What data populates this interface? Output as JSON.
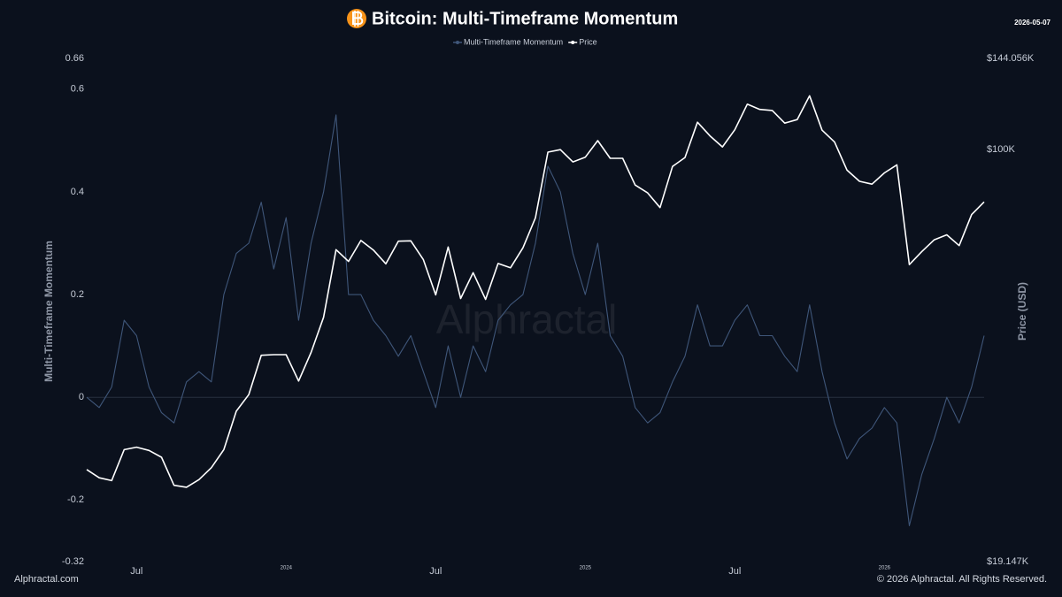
{
  "chart_data": {
    "type": "line",
    "title": "Bitcoin: Multi-Timeframe Momentum",
    "date": "2026-05-07",
    "watermark": "Alphractal",
    "source": "Alphractal.com",
    "copyright": "© 2026 Alphractal. All Rights Reserved.",
    "y_label": "Multi-Timeframe Momentum",
    "y2_label": "Price (USD)",
    "categories": [
      null,
      null,
      null,
      null,
      "Jul",
      null,
      null,
      null,
      null,
      null,
      null,
      null,
      null,
      null,
      null,
      null,
      "2024",
      null,
      null,
      null,
      null,
      null,
      null,
      null,
      null,
      null,
      null,
      null,
      "Jul",
      null,
      null,
      null,
      null,
      null,
      null,
      null,
      null,
      null,
      null,
      null,
      "2025",
      null,
      null,
      null,
      null,
      null,
      null,
      null,
      null,
      null,
      null,
      null,
      "Jul",
      null,
      null,
      null,
      null,
      null,
      null,
      null,
      null,
      null,
      null,
      null,
      "2026",
      null,
      null,
      null,
      null,
      null,
      null,
      null,
      null
    ],
    "series": [
      {
        "name": "Multi-Timeframe Momentum",
        "color": "#3f5679",
        "axis": "y",
        "values": [
          0.0,
          -0.02,
          0.02,
          0.15,
          0.12,
          0.02,
          -0.03,
          -0.05,
          0.03,
          0.05,
          0.03,
          0.2,
          0.28,
          0.3,
          0.38,
          0.25,
          0.35,
          0.15,
          0.3,
          0.4,
          0.55,
          0.2,
          0.2,
          0.15,
          0.12,
          0.08,
          0.12,
          0.05,
          -0.02,
          0.1,
          0.0,
          0.1,
          0.05,
          0.15,
          0.18,
          0.2,
          0.3,
          0.45,
          0.4,
          0.28,
          0.2,
          0.3,
          0.12,
          0.08,
          -0.02,
          -0.05,
          -0.03,
          0.03,
          0.08,
          0.18,
          0.1,
          0.1,
          0.15,
          0.18,
          0.12,
          0.12,
          0.08,
          0.05,
          0.18,
          0.05,
          -0.05,
          -0.12,
          -0.08,
          -0.06,
          -0.02,
          -0.05,
          -0.25,
          -0.15,
          -0.08,
          0.0,
          -0.05,
          0.02,
          0.12
        ]
      },
      {
        "name": "Price",
        "color": "#ffffff",
        "axis": "y2",
        "values": [
          27700,
          26800,
          26500,
          30000,
          30300,
          29900,
          29100,
          26000,
          25800,
          26600,
          27900,
          30000,
          35000,
          37400,
          43800,
          43900,
          43900,
          39500,
          44300,
          51000,
          66900,
          63800,
          69400,
          66800,
          63200,
          69200,
          69300,
          64300,
          55800,
          67600,
          55000,
          61000,
          54800,
          63300,
          62200,
          67400,
          76000,
          98900,
          99900,
          95100,
          96900,
          103600,
          96500,
          96500,
          86700,
          84000,
          79200,
          93400,
          96800,
          111500,
          105600,
          101000,
          108200,
          119900,
          117400,
          116900,
          111100,
          112700,
          124000,
          108000,
          103000,
          92000,
          88000,
          87000,
          91000,
          94000,
          63000,
          66400,
          69600,
          71000,
          68000,
          77000,
          81000
        ]
      }
    ],
    "ylim": [
      -0.32,
      0.66
    ],
    "yticks": [
      -0.32,
      -0.2,
      0,
      0.2,
      0.4,
      0.6,
      0.66
    ],
    "y2lim": [
      19147,
      144056
    ],
    "y2scale": "log",
    "y2ticks": [
      {
        "value": 19147,
        "label": "$19.147K"
      },
      {
        "value": 100000,
        "label": "$100K"
      },
      {
        "value": 144056,
        "label": "$144.056K"
      }
    ],
    "zero_line": true,
    "grid": false
  }
}
